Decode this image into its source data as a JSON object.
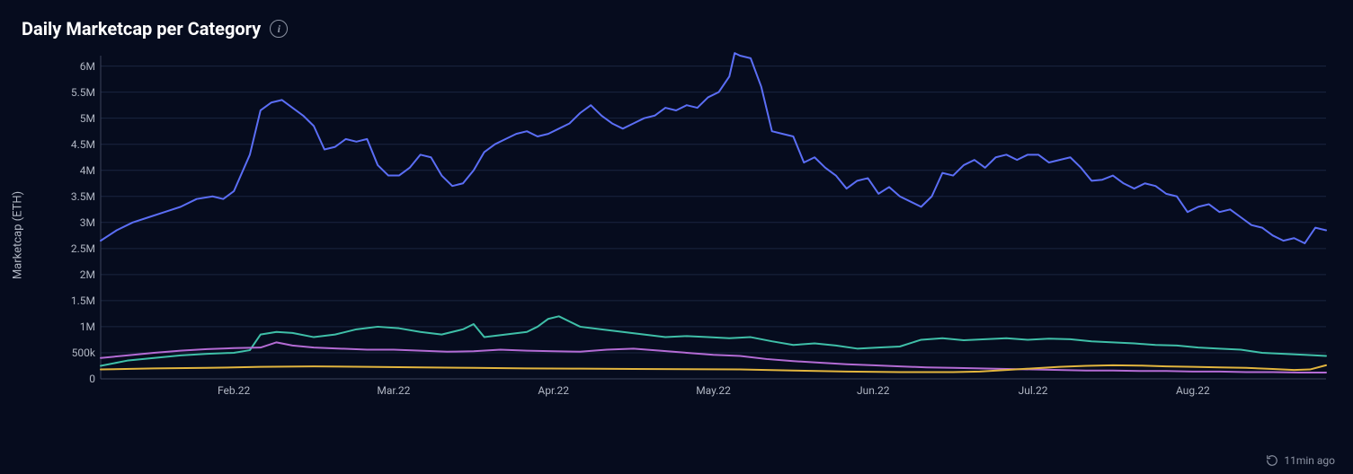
{
  "title": "Daily Marketcap per Category",
  "ylabel": "Marketcap (ETH)",
  "footer_time": "11min ago",
  "chart": {
    "type": "line",
    "background_color": "#060c1e",
    "grid_color": "#1a2540",
    "axis_line_color": "#3a425a",
    "tick_font_color": "#b0b6c3",
    "tick_fontsize": 12,
    "title_fontsize": 20,
    "line_width": 2,
    "y": {
      "min": 0,
      "max": 6200000,
      "ticks": [
        {
          "v": 0,
          "label": "0"
        },
        {
          "v": 500000,
          "label": "500k"
        },
        {
          "v": 1000000,
          "label": "1M"
        },
        {
          "v": 1500000,
          "label": "1.5M"
        },
        {
          "v": 2000000,
          "label": "2M"
        },
        {
          "v": 2500000,
          "label": "2.5M"
        },
        {
          "v": 3000000,
          "label": "3M"
        },
        {
          "v": 3500000,
          "label": "3.5M"
        },
        {
          "v": 4000000,
          "label": "4M"
        },
        {
          "v": 4500000,
          "label": "4.5M"
        },
        {
          "v": 5000000,
          "label": "5M"
        },
        {
          "v": 5500000,
          "label": "5.5M"
        },
        {
          "v": 6000000,
          "label": "6M"
        }
      ]
    },
    "x": {
      "min": 0,
      "max": 230,
      "ticks": [
        {
          "v": 25,
          "label": "Feb.22"
        },
        {
          "v": 55,
          "label": "Mar.22"
        },
        {
          "v": 85,
          "label": "Apr.22"
        },
        {
          "v": 115,
          "label": "May.22"
        },
        {
          "v": 145,
          "label": "Jun.22"
        },
        {
          "v": 175,
          "label": "Jul.22"
        },
        {
          "v": 205,
          "label": "Aug.22"
        }
      ]
    },
    "series": [
      {
        "name": "series-blue",
        "color": "#5b6ef5",
        "points": [
          [
            0,
            2650000
          ],
          [
            3,
            2850000
          ],
          [
            6,
            3000000
          ],
          [
            9,
            3100000
          ],
          [
            12,
            3200000
          ],
          [
            15,
            3300000
          ],
          [
            18,
            3450000
          ],
          [
            21,
            3500000
          ],
          [
            23,
            3450000
          ],
          [
            25,
            3600000
          ],
          [
            28,
            4300000
          ],
          [
            30,
            5150000
          ],
          [
            32,
            5300000
          ],
          [
            34,
            5350000
          ],
          [
            36,
            5200000
          ],
          [
            38,
            5050000
          ],
          [
            40,
            4850000
          ],
          [
            42,
            4400000
          ],
          [
            44,
            4450000
          ],
          [
            46,
            4600000
          ],
          [
            48,
            4550000
          ],
          [
            50,
            4600000
          ],
          [
            52,
            4100000
          ],
          [
            54,
            3900000
          ],
          [
            56,
            3900000
          ],
          [
            58,
            4050000
          ],
          [
            60,
            4300000
          ],
          [
            62,
            4250000
          ],
          [
            64,
            3900000
          ],
          [
            66,
            3700000
          ],
          [
            68,
            3750000
          ],
          [
            70,
            4000000
          ],
          [
            72,
            4350000
          ],
          [
            74,
            4500000
          ],
          [
            76,
            4600000
          ],
          [
            78,
            4700000
          ],
          [
            80,
            4750000
          ],
          [
            82,
            4650000
          ],
          [
            84,
            4700000
          ],
          [
            86,
            4800000
          ],
          [
            88,
            4900000
          ],
          [
            90,
            5100000
          ],
          [
            92,
            5250000
          ],
          [
            94,
            5050000
          ],
          [
            96,
            4900000
          ],
          [
            98,
            4800000
          ],
          [
            100,
            4900000
          ],
          [
            102,
            5000000
          ],
          [
            104,
            5050000
          ],
          [
            106,
            5200000
          ],
          [
            108,
            5150000
          ],
          [
            110,
            5250000
          ],
          [
            112,
            5200000
          ],
          [
            114,
            5400000
          ],
          [
            116,
            5500000
          ],
          [
            118,
            5800000
          ],
          [
            119,
            6250000
          ],
          [
            120,
            6200000
          ],
          [
            122,
            6150000
          ],
          [
            124,
            5600000
          ],
          [
            126,
            4750000
          ],
          [
            128,
            4700000
          ],
          [
            130,
            4650000
          ],
          [
            132,
            4150000
          ],
          [
            134,
            4250000
          ],
          [
            136,
            4050000
          ],
          [
            138,
            3900000
          ],
          [
            140,
            3650000
          ],
          [
            142,
            3800000
          ],
          [
            144,
            3850000
          ],
          [
            146,
            3550000
          ],
          [
            148,
            3680000
          ],
          [
            150,
            3500000
          ],
          [
            152,
            3400000
          ],
          [
            154,
            3300000
          ],
          [
            156,
            3500000
          ],
          [
            158,
            3950000
          ],
          [
            160,
            3900000
          ],
          [
            162,
            4100000
          ],
          [
            164,
            4200000
          ],
          [
            166,
            4050000
          ],
          [
            168,
            4250000
          ],
          [
            170,
            4300000
          ],
          [
            172,
            4200000
          ],
          [
            174,
            4300000
          ],
          [
            176,
            4300000
          ],
          [
            178,
            4150000
          ],
          [
            180,
            4200000
          ],
          [
            182,
            4250000
          ],
          [
            184,
            4050000
          ],
          [
            186,
            3800000
          ],
          [
            188,
            3820000
          ],
          [
            190,
            3900000
          ],
          [
            192,
            3750000
          ],
          [
            194,
            3650000
          ],
          [
            196,
            3750000
          ],
          [
            198,
            3700000
          ],
          [
            200,
            3550000
          ],
          [
            202,
            3500000
          ],
          [
            204,
            3200000
          ],
          [
            206,
            3300000
          ],
          [
            208,
            3350000
          ],
          [
            210,
            3200000
          ],
          [
            212,
            3250000
          ],
          [
            214,
            3100000
          ],
          [
            216,
            2950000
          ],
          [
            218,
            2900000
          ],
          [
            220,
            2750000
          ],
          [
            222,
            2650000
          ],
          [
            224,
            2700000
          ],
          [
            226,
            2600000
          ],
          [
            228,
            2900000
          ],
          [
            230,
            2850000
          ]
        ]
      },
      {
        "name": "series-teal",
        "color": "#3fbfa8",
        "points": [
          [
            0,
            250000
          ],
          [
            5,
            350000
          ],
          [
            10,
            400000
          ],
          [
            15,
            450000
          ],
          [
            20,
            480000
          ],
          [
            25,
            500000
          ],
          [
            28,
            550000
          ],
          [
            30,
            850000
          ],
          [
            33,
            900000
          ],
          [
            36,
            880000
          ],
          [
            40,
            800000
          ],
          [
            44,
            850000
          ],
          [
            48,
            950000
          ],
          [
            52,
            1000000
          ],
          [
            56,
            970000
          ],
          [
            60,
            900000
          ],
          [
            64,
            850000
          ],
          [
            68,
            950000
          ],
          [
            70,
            1050000
          ],
          [
            72,
            800000
          ],
          [
            76,
            850000
          ],
          [
            80,
            900000
          ],
          [
            82,
            1000000
          ],
          [
            84,
            1150000
          ],
          [
            86,
            1200000
          ],
          [
            88,
            1100000
          ],
          [
            90,
            1000000
          ],
          [
            94,
            950000
          ],
          [
            98,
            900000
          ],
          [
            102,
            850000
          ],
          [
            106,
            800000
          ],
          [
            110,
            820000
          ],
          [
            114,
            800000
          ],
          [
            118,
            780000
          ],
          [
            122,
            800000
          ],
          [
            126,
            720000
          ],
          [
            130,
            650000
          ],
          [
            134,
            680000
          ],
          [
            138,
            640000
          ],
          [
            142,
            580000
          ],
          [
            146,
            600000
          ],
          [
            150,
            620000
          ],
          [
            154,
            750000
          ],
          [
            158,
            780000
          ],
          [
            162,
            740000
          ],
          [
            166,
            760000
          ],
          [
            170,
            780000
          ],
          [
            174,
            750000
          ],
          [
            178,
            770000
          ],
          [
            182,
            760000
          ],
          [
            186,
            720000
          ],
          [
            190,
            700000
          ],
          [
            194,
            680000
          ],
          [
            198,
            650000
          ],
          [
            202,
            640000
          ],
          [
            206,
            600000
          ],
          [
            210,
            580000
          ],
          [
            214,
            560000
          ],
          [
            218,
            500000
          ],
          [
            222,
            480000
          ],
          [
            226,
            460000
          ],
          [
            230,
            440000
          ]
        ]
      },
      {
        "name": "series-purple",
        "color": "#b36bd4",
        "points": [
          [
            0,
            400000
          ],
          [
            5,
            450000
          ],
          [
            10,
            500000
          ],
          [
            15,
            540000
          ],
          [
            20,
            570000
          ],
          [
            25,
            590000
          ],
          [
            30,
            600000
          ],
          [
            33,
            700000
          ],
          [
            36,
            640000
          ],
          [
            40,
            600000
          ],
          [
            45,
            580000
          ],
          [
            50,
            560000
          ],
          [
            55,
            560000
          ],
          [
            60,
            540000
          ],
          [
            65,
            520000
          ],
          [
            70,
            530000
          ],
          [
            75,
            560000
          ],
          [
            80,
            540000
          ],
          [
            85,
            530000
          ],
          [
            90,
            520000
          ],
          [
            95,
            560000
          ],
          [
            100,
            580000
          ],
          [
            105,
            540000
          ],
          [
            110,
            500000
          ],
          [
            115,
            460000
          ],
          [
            120,
            440000
          ],
          [
            125,
            380000
          ],
          [
            130,
            340000
          ],
          [
            135,
            310000
          ],
          [
            140,
            280000
          ],
          [
            145,
            260000
          ],
          [
            150,
            240000
          ],
          [
            155,
            220000
          ],
          [
            160,
            210000
          ],
          [
            165,
            200000
          ],
          [
            170,
            190000
          ],
          [
            175,
            180000
          ],
          [
            180,
            170000
          ],
          [
            185,
            160000
          ],
          [
            190,
            160000
          ],
          [
            195,
            150000
          ],
          [
            200,
            150000
          ],
          [
            205,
            140000
          ],
          [
            210,
            140000
          ],
          [
            215,
            130000
          ],
          [
            220,
            130000
          ],
          [
            225,
            120000
          ],
          [
            230,
            120000
          ]
        ]
      },
      {
        "name": "series-yellow",
        "color": "#e2b53e",
        "points": [
          [
            0,
            180000
          ],
          [
            10,
            200000
          ],
          [
            20,
            210000
          ],
          [
            30,
            230000
          ],
          [
            40,
            240000
          ],
          [
            50,
            230000
          ],
          [
            60,
            220000
          ],
          [
            70,
            210000
          ],
          [
            80,
            200000
          ],
          [
            90,
            195000
          ],
          [
            100,
            190000
          ],
          [
            110,
            185000
          ],
          [
            120,
            180000
          ],
          [
            130,
            160000
          ],
          [
            140,
            140000
          ],
          [
            150,
            130000
          ],
          [
            160,
            130000
          ],
          [
            165,
            140000
          ],
          [
            170,
            170000
          ],
          [
            175,
            200000
          ],
          [
            180,
            230000
          ],
          [
            185,
            250000
          ],
          [
            190,
            260000
          ],
          [
            195,
            255000
          ],
          [
            200,
            240000
          ],
          [
            205,
            230000
          ],
          [
            210,
            220000
          ],
          [
            215,
            210000
          ],
          [
            220,
            190000
          ],
          [
            224,
            170000
          ],
          [
            227,
            180000
          ],
          [
            230,
            260000
          ]
        ]
      }
    ]
  }
}
